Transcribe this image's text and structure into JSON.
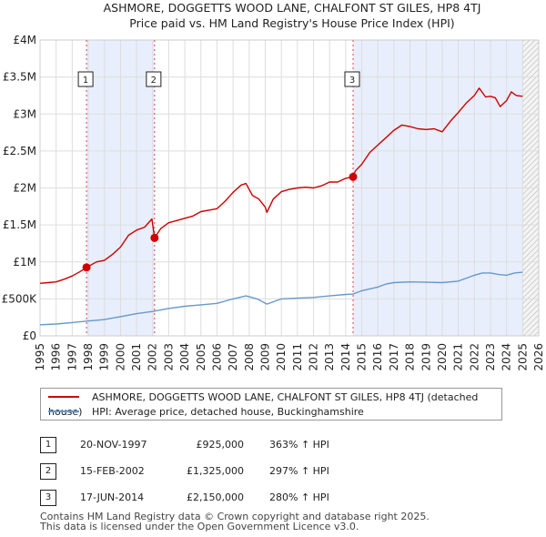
{
  "chart_data": {
    "type": "line",
    "title": "ASHMORE, DOGGETTS WOOD LANE, CHALFONT ST GILES, HP8 4TJ",
    "subtitle": "Price paid vs. HM Land Registry's House Price Index (HPI)",
    "xlim": [
      1995,
      2026
    ],
    "ylim": [
      0,
      4000000
    ],
    "x_ticks": [
      1995,
      1996,
      1997,
      1998,
      1999,
      2000,
      2001,
      2002,
      2003,
      2004,
      2005,
      2006,
      2007,
      2008,
      2009,
      2010,
      2011,
      2012,
      2013,
      2014,
      2015,
      2016,
      2017,
      2018,
      2019,
      2020,
      2021,
      2022,
      2023,
      2024,
      2025,
      2026
    ],
    "y_ticks": [
      {
        "value": 0,
        "label": "£0"
      },
      {
        "value": 500000,
        "label": "£500K"
      },
      {
        "value": 1000000,
        "label": "£1M"
      },
      {
        "value": 1500000,
        "label": "£1.5M"
      },
      {
        "value": 2000000,
        "label": "£2M"
      },
      {
        "value": 2500000,
        "label": "£2.5M"
      },
      {
        "value": 3000000,
        "label": "£3M"
      },
      {
        "value": 3500000,
        "label": "£3.5M"
      },
      {
        "value": 4000000,
        "label": "£4M"
      }
    ],
    "grid": true,
    "data_end_year": 2025.0,
    "series": [
      {
        "name": "ASHMORE, DOGGETTS WOOD LANE, CHALFONT ST GILES, HP8 4TJ (detached house)",
        "color": "#cc0000",
        "x": [
          1995.0,
          1995.5,
          1996.0,
          1996.5,
          1997.0,
          1997.5,
          1997.89,
          1998.5,
          1999.0,
          1999.5,
          2000.0,
          2000.5,
          2001.0,
          2001.5,
          2001.95,
          2002.12,
          2002.5,
          2003.0,
          2003.5,
          2004.0,
          2004.5,
          2005.0,
          2005.5,
          2006.0,
          2006.5,
          2007.0,
          2007.5,
          2007.8,
          2008.2,
          2008.6,
          2009.0,
          2009.1,
          2009.5,
          2010.0,
          2010.5,
          2011.0,
          2011.5,
          2012.0,
          2012.5,
          2013.0,
          2013.5,
          2014.0,
          2014.46,
          2014.6,
          2015.0,
          2015.5,
          2016.0,
          2016.5,
          2017.0,
          2017.5,
          2018.0,
          2018.5,
          2019.0,
          2019.5,
          2020.0,
          2020.5,
          2021.0,
          2021.5,
          2022.0,
          2022.3,
          2022.7,
          2023.0,
          2023.3,
          2023.6,
          2024.0,
          2024.3,
          2024.6,
          2025.0
        ],
        "y": [
          710000,
          720000,
          730000,
          765000,
          810000,
          870000,
          925000,
          1000000,
          1020000,
          1100000,
          1200000,
          1360000,
          1430000,
          1470000,
          1580000,
          1325000,
          1450000,
          1530000,
          1560000,
          1590000,
          1620000,
          1680000,
          1700000,
          1720000,
          1820000,
          1940000,
          2040000,
          2060000,
          1900000,
          1850000,
          1740000,
          1670000,
          1850000,
          1950000,
          1980000,
          2000000,
          2010000,
          2000000,
          2030000,
          2080000,
          2080000,
          2130000,
          2150000,
          2230000,
          2320000,
          2480000,
          2580000,
          2680000,
          2780000,
          2850000,
          2830000,
          2800000,
          2790000,
          2800000,
          2760000,
          2900000,
          3020000,
          3150000,
          3250000,
          3350000,
          3230000,
          3240000,
          3220000,
          3100000,
          3180000,
          3300000,
          3250000,
          3240000
        ]
      },
      {
        "name": "HPI: Average price, detached house, Buckinghamshire",
        "color": "#6699cc",
        "x": [
          1995.0,
          1996.0,
          1997.0,
          1997.89,
          1998.5,
          1999.0,
          2000.0,
          2001.0,
          2002.0,
          2003.0,
          2004.0,
          2005.0,
          2006.0,
          2007.0,
          2007.8,
          2008.5,
          2009.1,
          2009.5,
          2010.0,
          2011.0,
          2012.0,
          2013.0,
          2014.0,
          2014.46,
          2015.0,
          2016.0,
          2016.5,
          2017.0,
          2018.0,
          2019.0,
          2020.0,
          2021.0,
          2021.5,
          2022.0,
          2022.5,
          2023.0,
          2023.5,
          2024.0,
          2024.5,
          2025.0
        ],
        "y": [
          150000,
          160000,
          180000,
          200000,
          210000,
          220000,
          260000,
          300000,
          330000,
          370000,
          400000,
          420000,
          440000,
          500000,
          540000,
          500000,
          430000,
          460000,
          500000,
          510000,
          520000,
          540000,
          560000,
          565000,
          610000,
          660000,
          700000,
          720000,
          730000,
          725000,
          720000,
          740000,
          780000,
          820000,
          850000,
          850000,
          830000,
          820000,
          850000,
          860000
        ]
      }
    ],
    "sales": [
      {
        "marker": "1",
        "x": 1997.89,
        "price": 925000
      },
      {
        "marker": "2",
        "x": 2002.12,
        "price": 1325000
      },
      {
        "marker": "3",
        "x": 2014.46,
        "price": 2150000
      }
    ]
  },
  "legend": {
    "property_label": "ASHMORE, DOGGETTS WOOD LANE, CHALFONT ST GILES, HP8 4TJ (detached house)",
    "hpi_label": "HPI: Average price, detached house, Buckinghamshire"
  },
  "sales_table": [
    {
      "num": "1",
      "date": "20-NOV-1997",
      "price": "£925,000",
      "pct": "363% ↑ HPI"
    },
    {
      "num": "2",
      "date": "15-FEB-2002",
      "price": "£1,325,000",
      "pct": "297% ↑ HPI"
    },
    {
      "num": "3",
      "date": "17-JUN-2014",
      "price": "£2,150,000",
      "pct": "280% ↑ HPI"
    }
  ],
  "footer": {
    "line1": "Contains HM Land Registry data © Crown copyright and database right 2025.",
    "line2": "This data is licensed under the Open Government Licence v3.0."
  }
}
